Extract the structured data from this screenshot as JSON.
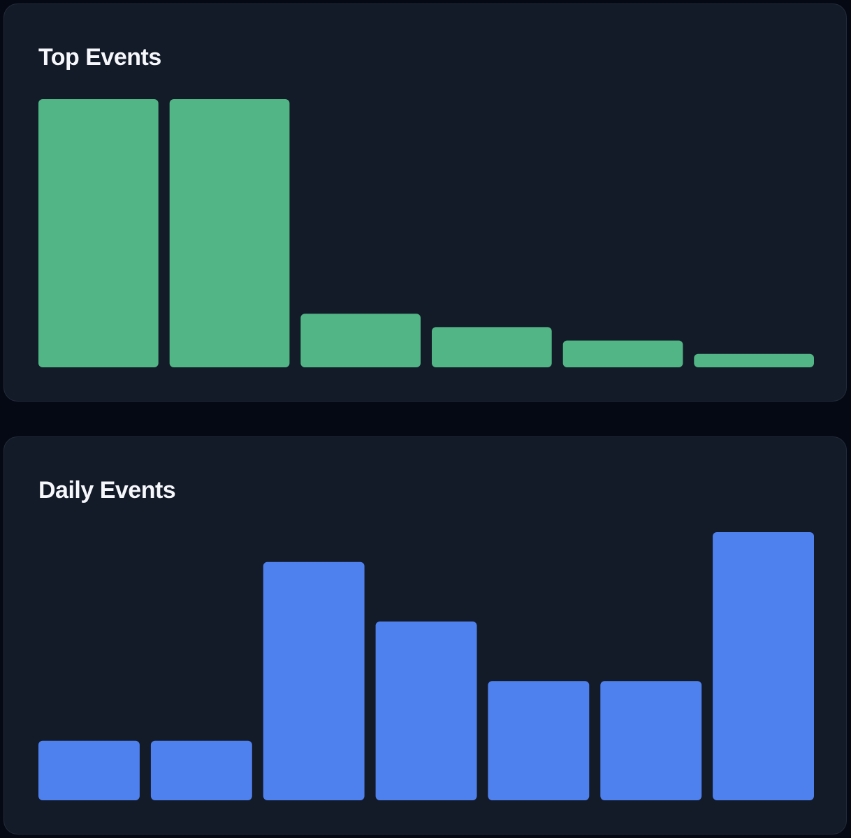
{
  "charts": {
    "top_events": {
      "title": "Top Events"
    },
    "daily_events": {
      "title": "Daily Events"
    }
  },
  "chart_data": [
    {
      "type": "bar",
      "title": "Top Events",
      "color": "#52b585",
      "categories": [
        "",
        "",
        "",
        "",
        "",
        ""
      ],
      "values": [
        100,
        100,
        20,
        15,
        10,
        5
      ],
      "ylim": [
        0,
        100
      ],
      "grid": false,
      "axes_visible": false,
      "legend": "none"
    },
    {
      "type": "bar",
      "title": "Daily Events",
      "color": "#4f81ee",
      "categories": [
        "",
        "",
        "",
        "",
        "",
        "",
        ""
      ],
      "values": [
        2,
        2,
        8,
        6,
        4,
        4,
        9
      ],
      "ylim": [
        0,
        9
      ],
      "grid": false,
      "axes_visible": false,
      "legend": "none"
    }
  ]
}
